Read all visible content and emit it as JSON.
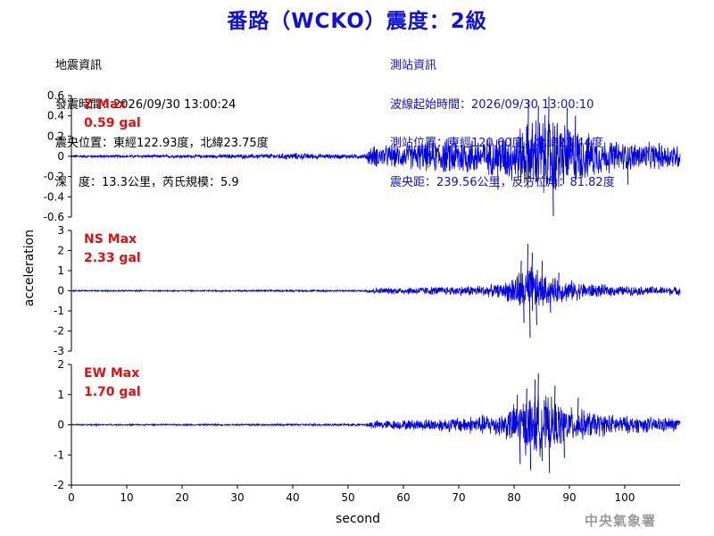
{
  "title": "番路（WCKO）震度：2級",
  "earthquake_info": {
    "heading": "地震資訊",
    "origin_time": "發震時間：2026/09/30 13:00:24",
    "epicenter": "震央位置：東經122.93度，北緯23.75度",
    "depth_magnitude": "深　度：13.3公里，芮氏規模：5.9"
  },
  "station_info": {
    "heading": "測站資訊",
    "wave_start_time": "波線起始時間：2026/09/30 13:00:10",
    "station_location": "測站位置：東經120.60度，北緯23.44度",
    "distance_azimuth": "震央距：239.56公里，反方位角：81.82度"
  },
  "agency": "中央氣象署",
  "colors": {
    "trace": "#0000e0",
    "title": "#1010d8",
    "max_label": "#dd1111",
    "station_info": "#1010d8"
  },
  "chart_data": {
    "type": "line",
    "xlabel": "second",
    "ylabel": "acceleration",
    "xlim": [
      0,
      110
    ],
    "x_ticks": [
      0,
      10,
      20,
      30,
      40,
      50,
      60,
      70,
      80,
      90,
      100
    ],
    "x_tick_labels": [
      "0",
      "10",
      "20",
      "30",
      "40",
      "50",
      "60",
      "70",
      "80",
      "90",
      "100"
    ],
    "panels": [
      {
        "name": "Z",
        "max_label": "Z Max",
        "max_value": "0.59 gal",
        "ylim": [
          -0.6,
          0.6
        ],
        "y_ticks": [
          0.6,
          0.4,
          0.2,
          0,
          -0.2,
          -0.4,
          -0.6
        ],
        "y_tick_labels": [
          "0.6",
          "0.4",
          "0.2",
          "0",
          "-0.2",
          "-0.4",
          "-0.6"
        ],
        "envelope": [
          [
            0,
            0.012
          ],
          [
            10,
            0.012
          ],
          [
            20,
            0.014
          ],
          [
            30,
            0.018
          ],
          [
            36,
            0.022
          ],
          [
            40,
            0.03
          ],
          [
            46,
            0.02
          ],
          [
            53,
            0.02
          ],
          [
            54,
            0.09
          ],
          [
            60,
            0.1
          ],
          [
            70,
            0.17
          ],
          [
            75,
            0.15
          ],
          [
            80,
            0.22
          ],
          [
            84,
            0.34
          ],
          [
            87,
            0.36
          ],
          [
            90,
            0.26
          ],
          [
            95,
            0.16
          ],
          [
            100,
            0.12
          ],
          [
            110,
            0.11
          ]
        ],
        "peaks": [
          [
            82.5,
            0.55
          ],
          [
            84.3,
            0.5
          ],
          [
            86.2,
            0.59
          ],
          [
            87.0,
            -0.59
          ],
          [
            89.5,
            0.48
          ],
          [
            77.0,
            -0.33
          ],
          [
            91.0,
            0.4
          ],
          [
            100.5,
            -0.28
          ]
        ]
      },
      {
        "name": "NS",
        "max_label": "NS Max",
        "max_value": "2.33 gal",
        "ylim": [
          -3,
          3
        ],
        "y_ticks": [
          3,
          2,
          1,
          0,
          -1,
          -2,
          -3
        ],
        "y_tick_labels": [
          "3",
          "2",
          "1",
          "0",
          "-1",
          "-2",
          "-3"
        ],
        "envelope": [
          [
            0,
            0.03
          ],
          [
            20,
            0.03
          ],
          [
            40,
            0.04
          ],
          [
            53,
            0.04
          ],
          [
            54,
            0.12
          ],
          [
            60,
            0.16
          ],
          [
            70,
            0.2
          ],
          [
            78,
            0.3
          ],
          [
            81,
            0.9
          ],
          [
            83,
            1.1
          ],
          [
            86,
            0.6
          ],
          [
            90,
            0.45
          ],
          [
            95,
            0.28
          ],
          [
            100,
            0.2
          ],
          [
            110,
            0.18
          ]
        ],
        "peaks": [
          [
            81.2,
            1.5
          ],
          [
            81.7,
            -1.6
          ],
          [
            82.4,
            2.33
          ],
          [
            82.8,
            -2.33
          ],
          [
            83.2,
            1.9
          ],
          [
            84.0,
            -1.7
          ],
          [
            85.0,
            1.5
          ],
          [
            86.5,
            -1.1
          ],
          [
            88.0,
            0.9
          ]
        ]
      },
      {
        "name": "EW",
        "max_label": "EW Max",
        "max_value": "1.70 gal",
        "ylim": [
          -2,
          2
        ],
        "y_ticks": [
          2,
          1,
          0,
          -1,
          -2
        ],
        "y_tick_labels": [
          "2",
          "1",
          "0",
          "-1",
          "-2"
        ],
        "envelope": [
          [
            0,
            0.02
          ],
          [
            20,
            0.02
          ],
          [
            40,
            0.03
          ],
          [
            53,
            0.03
          ],
          [
            54,
            0.12
          ],
          [
            60,
            0.14
          ],
          [
            70,
            0.22
          ],
          [
            78,
            0.35
          ],
          [
            80,
            0.6
          ],
          [
            83,
            0.9
          ],
          [
            86,
            0.8
          ],
          [
            90,
            0.5
          ],
          [
            95,
            0.35
          ],
          [
            100,
            0.25
          ],
          [
            110,
            0.2
          ]
        ],
        "peaks": [
          [
            80.5,
            1.0
          ],
          [
            81.0,
            -1.3
          ],
          [
            82.2,
            1.2
          ],
          [
            82.9,
            -1.5
          ],
          [
            83.7,
            1.5
          ],
          [
            84.3,
            1.7
          ],
          [
            85.0,
            -1.2
          ],
          [
            86.3,
            -1.6
          ],
          [
            87.3,
            1.3
          ],
          [
            89.0,
            -1.1
          ],
          [
            91.5,
            0.9
          ]
        ]
      }
    ]
  }
}
